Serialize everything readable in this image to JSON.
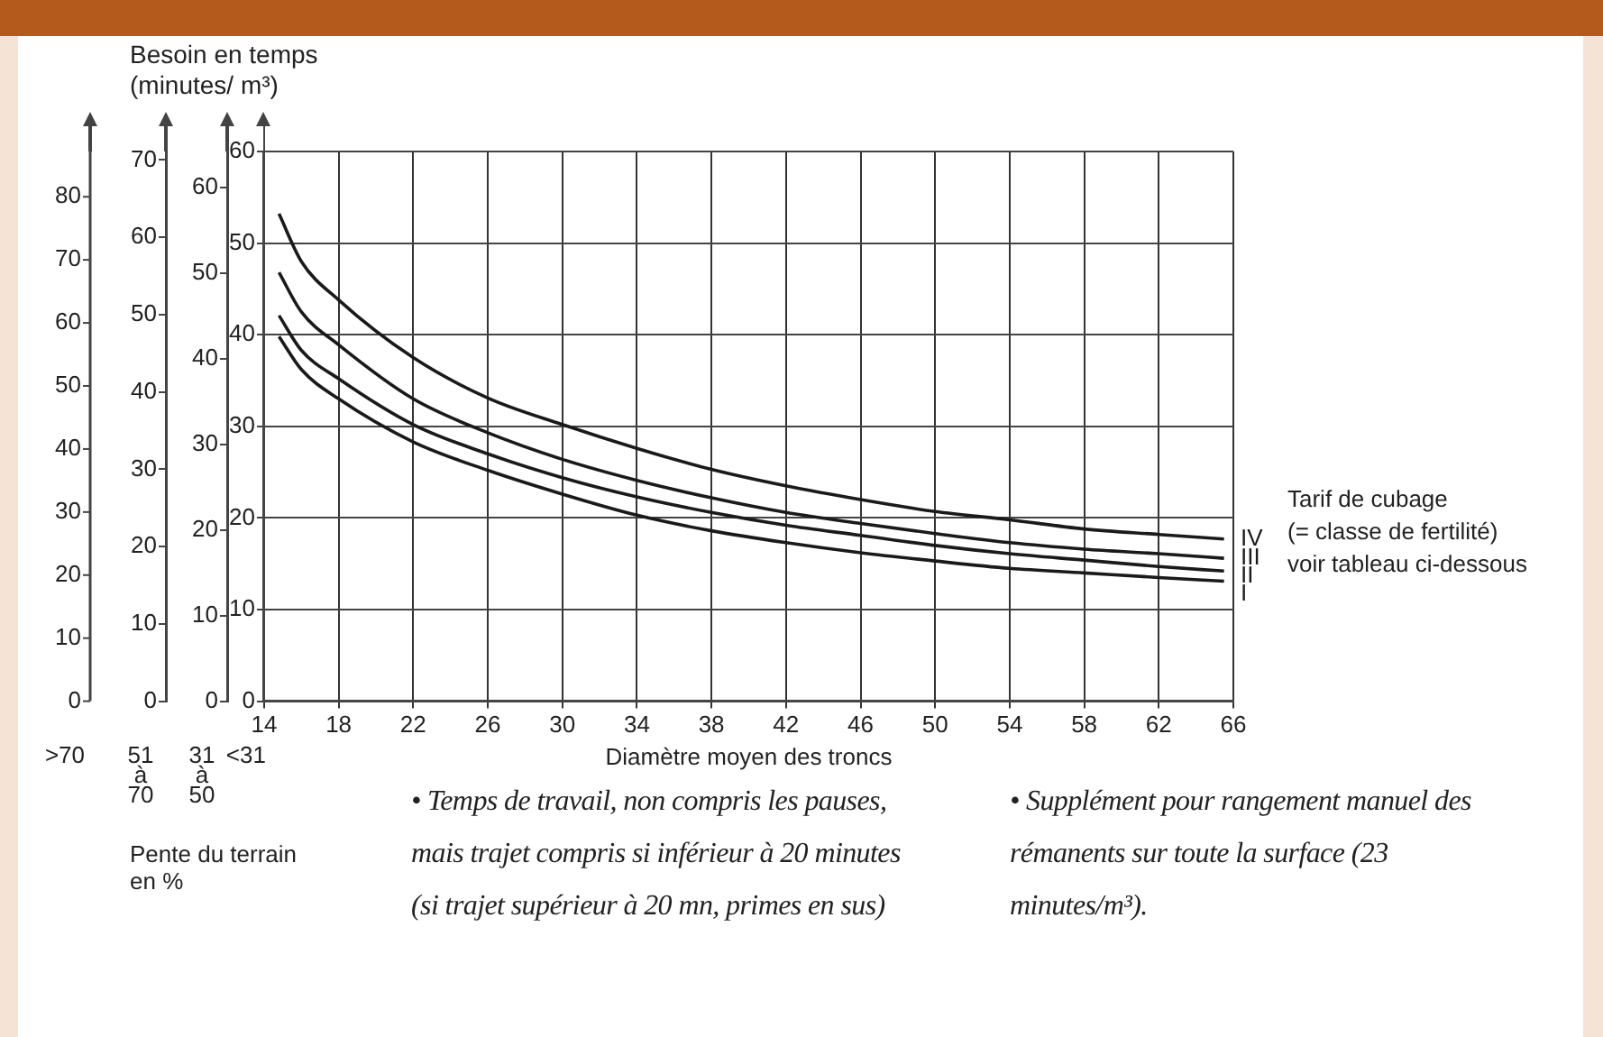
{
  "chart_data": {
    "type": "line",
    "ylabel": "Besoin en temps (minutes/ m³)",
    "xlabel": "Diamètre moyen des troncs",
    "y2label": "31 à 50",
    "y3label": "51 à 70",
    "xlim": [
      14,
      66
    ],
    "xticks": [
      14,
      18,
      22,
      26,
      30,
      34,
      38,
      42,
      46,
      50,
      54,
      58,
      62,
      66
    ],
    "ylim": [
      0,
      60
    ],
    "yticks": [
      0,
      10,
      20,
      30,
      40,
      50,
      60
    ],
    "y2lim": [
      0,
      64.2
    ],
    "y2ticks": [
      0,
      10,
      20,
      30,
      40,
      50,
      60
    ],
    "y3lim": [
      0,
      71.1
    ],
    "y3ticks": [
      0,
      10,
      20,
      30,
      40,
      50,
      60,
      70
    ],
    "grid": true,
    "legend": false,
    "marker": "none",
    "line_style": "solid",
    "x": [
      14.8,
      16,
      18,
      22,
      26,
      30,
      34,
      38,
      42,
      46,
      50,
      54,
      58,
      62,
      65.5
    ],
    "series": [
      {
        "name": "IV",
        "color": "#1a1a1a",
        "values": [
          53.2,
          48,
          43.8,
          37.5,
          33.1,
          30.2,
          27.6,
          25.3,
          23.5,
          22.0,
          20.7,
          19.8,
          18.8,
          18.2,
          17.7
        ]
      },
      {
        "name": "III",
        "color": "#1a1a1a",
        "values": [
          46.8,
          42.5,
          38.9,
          33.0,
          29.3,
          26.4,
          24.1,
          22.2,
          20.6,
          19.4,
          18.3,
          17.3,
          16.6,
          16.1,
          15.6
        ]
      },
      {
        "name": "II",
        "color": "#1a1a1a",
        "values": [
          42.1,
          38.3,
          35.2,
          30.2,
          27.0,
          24.4,
          22.3,
          20.6,
          19.2,
          18.1,
          17.0,
          16.1,
          15.4,
          14.7,
          14.2
        ]
      },
      {
        "name": "I",
        "color": "#1a1a1a",
        "values": [
          39.8,
          36.2,
          33.0,
          28.3,
          25.2,
          22.6,
          20.3,
          18.6,
          17.3,
          16.2,
          15.3,
          14.5,
          14.0,
          13.5,
          13.1
        ]
      }
    ],
    "annotations": [
      "<31",
      ">70",
      "Pente du terrain en %",
      "Tarif de cubage\n(= classe de fertilité)\nvoir tableau ci-dessous",
      "• Temps de travail, non compris les pauses, mais trajet compris si inférieur à 20 minutes (si trajet supérieur à 20 mn, primes en sus)",
      "• Supplément pour rangement manuel des rémanents sur toute la surface (23 minutes/m³).",
      "0",
      "10",
      "20",
      "30",
      "40",
      "50",
      "60",
      "70",
      "80"
    ]
  }
}
